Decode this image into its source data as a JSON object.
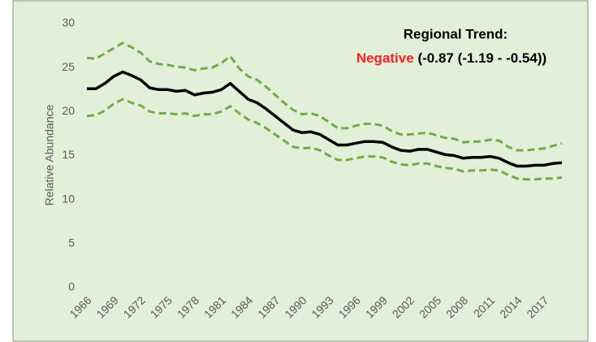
{
  "chart_data": {
    "type": "line",
    "ylabel": "Relative Abundance",
    "annotation": {
      "title": "Regional Trend:",
      "trend": "Negative",
      "trend_color": "#ff2020",
      "detail": "(-0.87 (-1.19 - -0.54))"
    },
    "x": [
      1966,
      1967,
      1968,
      1969,
      1970,
      1971,
      1972,
      1973,
      1974,
      1975,
      1976,
      1977,
      1978,
      1979,
      1980,
      1981,
      1982,
      1983,
      1984,
      1985,
      1986,
      1987,
      1988,
      1989,
      1990,
      1991,
      1992,
      1993,
      1994,
      1995,
      1996,
      1997,
      1998,
      1999,
      2000,
      2001,
      2002,
      2003,
      2004,
      2005,
      2006,
      2007,
      2008,
      2009,
      2010,
      2011,
      2012,
      2013,
      2014,
      2015,
      2016,
      2017,
      2018,
      2019
    ],
    "xlim": [
      1966,
      2019
    ],
    "xticks": [
      1966,
      1969,
      1972,
      1975,
      1978,
      1981,
      1984,
      1987,
      1990,
      1993,
      1996,
      1999,
      2002,
      2005,
      2008,
      2011,
      2014,
      2017
    ],
    "ylim": [
      0,
      30
    ],
    "yticks": [
      0,
      5,
      10,
      15,
      20,
      25,
      30
    ],
    "grid": false,
    "series": [
      {
        "color": "#70ad47",
        "dashed": true,
        "values": [
          26.1,
          26.0,
          26.6,
          27.2,
          27.8,
          27.3,
          26.7,
          25.7,
          25.4,
          25.3,
          25.1,
          25.0,
          24.7,
          24.9,
          25.0,
          25.5,
          26.3,
          24.9,
          24.0,
          23.6,
          22.8,
          21.9,
          21.0,
          20.2,
          19.7,
          19.8,
          19.5,
          18.8,
          18.1,
          18.1,
          18.4,
          18.6,
          18.6,
          18.4,
          17.8,
          17.4,
          17.4,
          17.5,
          17.6,
          17.3,
          17.0,
          16.9,
          16.5,
          16.6,
          16.6,
          16.8,
          16.7,
          16.0,
          15.6,
          15.6,
          15.7,
          15.8,
          16.1,
          16.4
        ]
      },
      {
        "color": "#70ad47",
        "dashed": true,
        "values": [
          19.5,
          19.6,
          20.1,
          20.9,
          21.4,
          21.0,
          20.7,
          20.0,
          19.8,
          19.8,
          19.7,
          19.8,
          19.5,
          19.7,
          19.7,
          20.0,
          20.6,
          19.8,
          19.1,
          18.7,
          18.1,
          17.4,
          16.7,
          16.0,
          15.8,
          15.9,
          15.6,
          15.0,
          14.5,
          14.5,
          14.7,
          14.9,
          14.9,
          14.8,
          14.3,
          14.0,
          13.9,
          14.1,
          14.1,
          13.8,
          13.6,
          13.5,
          13.2,
          13.3,
          13.3,
          13.4,
          13.3,
          12.8,
          12.4,
          12.3,
          12.3,
          12.4,
          12.4,
          12.5
        ]
      },
      {
        "color": "#000000",
        "dashed": false,
        "values": [
          22.6,
          22.6,
          23.2,
          24.0,
          24.5,
          24.1,
          23.6,
          22.7,
          22.5,
          22.5,
          22.3,
          22.4,
          21.9,
          22.1,
          22.2,
          22.5,
          23.2,
          22.3,
          21.4,
          21.0,
          20.3,
          19.5,
          18.7,
          17.9,
          17.6,
          17.7,
          17.4,
          16.8,
          16.2,
          16.2,
          16.4,
          16.6,
          16.6,
          16.5,
          16.0,
          15.6,
          15.5,
          15.7,
          15.7,
          15.4,
          15.1,
          15.0,
          14.7,
          14.8,
          14.8,
          14.9,
          14.7,
          14.2,
          13.8,
          13.8,
          13.9,
          13.9,
          14.1,
          14.2
        ]
      }
    ]
  }
}
